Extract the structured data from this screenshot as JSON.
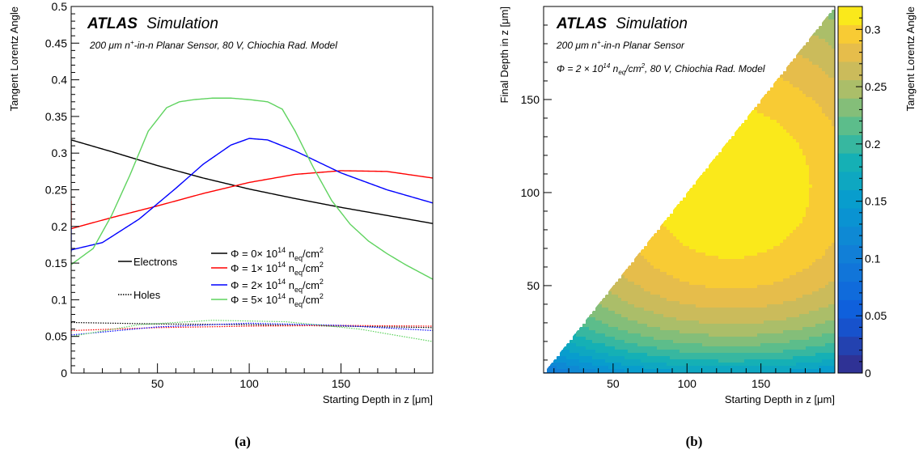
{
  "panel_a": {
    "caption": "(a)",
    "atlas": "ATLAS",
    "simulation": "Simulation",
    "subtitle_pre": "200 ",
    "subtitle_mu": "μ",
    "subtitle_mid": "m n",
    "subtitle_sup": "+",
    "subtitle_post": "-in-n Planar Sensor, 80 V, Chiochia Rad. Model",
    "legend_electrons": "Electrons",
    "legend_holes": "Holes"
  },
  "panel_b": {
    "caption": "(b)",
    "atlas": "ATLAS",
    "simulation": "Simulation",
    "line1_pre": "200 ",
    "line1_mu": "μ",
    "line1_mid": "m n",
    "line1_sup": "+",
    "line1_post": "-in-n Planar Sensor",
    "line2_phi": "Φ",
    "line2_a": " = 2 × 10",
    "line2_exp": "14",
    "line2_b": " n",
    "line2_sub": "eq",
    "line2_c": "/cm",
    "line2_sup2": "2",
    "line2_d": ", 80 V, Chiochia Rad. Model"
  },
  "chart_data": [
    {
      "type": "line",
      "xlabel": "Starting Depth in z [μm]",
      "ylabel": "Tangent Lorentz Angle",
      "xlim": [
        3,
        200
      ],
      "ylim": [
        0,
        0.5
      ],
      "x_ticks": [
        50,
        100,
        150
      ],
      "y_ticks": [
        0,
        0.05,
        0.1,
        0.15,
        0.2,
        0.25,
        0.3,
        0.35,
        0.4,
        0.45,
        0.5
      ],
      "y_tick_labels": [
        "0",
        "0.05",
        "0.1",
        "0.15",
        "0.2",
        "0.25",
        "0.3",
        "0.35",
        "0.4",
        "0.45",
        "0.5"
      ],
      "legend": [
        {
          "phi": "Φ",
          "mid": " = 0× 10",
          "exp": "14",
          "n": " n",
          "sub": "eq",
          "tail": "/cm",
          "sup2": "2",
          "color": "#000000"
        },
        {
          "phi": "Φ",
          "mid": " = 1× 10",
          "exp": "14",
          "n": " n",
          "sub": "eq",
          "tail": "/cm",
          "sup2": "2",
          "color": "#ff0000"
        },
        {
          "phi": "Φ",
          "mid": " = 2× 10",
          "exp": "14",
          "n": " n",
          "sub": "eq",
          "tail": "/cm",
          "sup2": "2",
          "color": "#0000ff"
        },
        {
          "phi": "Φ",
          "mid": " = 5× 10",
          "exp": "14",
          "n": " n",
          "sub": "eq",
          "tail": "/cm",
          "sup2": "2",
          "color": "#5fd35f"
        }
      ],
      "series": [
        {
          "carrier": "electrons",
          "color": "#000000",
          "x": [
            3,
            25,
            50,
            75,
            100,
            125,
            150,
            175,
            200
          ],
          "y": [
            0.318,
            0.302,
            0.283,
            0.266,
            0.251,
            0.238,
            0.226,
            0.215,
            0.204
          ],
          "start_segment": [
            [
              3,
              0.27
            ],
            [
              3,
              0.318
            ]
          ]
        },
        {
          "carrier": "electrons",
          "color": "#ff0000",
          "x": [
            3,
            25,
            50,
            75,
            100,
            125,
            150,
            175,
            200
          ],
          "y": [
            0.197,
            0.212,
            0.228,
            0.245,
            0.26,
            0.271,
            0.276,
            0.275,
            0.266
          ],
          "start_segment": [
            [
              3,
              0.2
            ],
            [
              3,
              0.235
            ]
          ]
        },
        {
          "carrier": "electrons",
          "color": "#0000ff",
          "x": [
            3,
            20,
            40,
            60,
            75,
            90,
            100,
            110,
            125,
            150,
            175,
            200
          ],
          "y": [
            0.168,
            0.178,
            0.21,
            0.252,
            0.285,
            0.311,
            0.32,
            0.318,
            0.303,
            0.273,
            0.25,
            0.232
          ],
          "start_segment": [
            [
              3,
              0.165
            ],
            [
              3,
              0.2
            ]
          ]
        },
        {
          "carrier": "electrons",
          "color": "#5fd35f",
          "x": [
            3,
            15,
            25,
            35,
            45,
            55,
            62,
            70,
            80,
            90,
            100,
            110,
            118,
            125,
            135,
            145,
            155,
            165,
            175,
            185,
            200
          ],
          "y": [
            0.148,
            0.17,
            0.215,
            0.27,
            0.33,
            0.362,
            0.37,
            0.373,
            0.375,
            0.375,
            0.373,
            0.37,
            0.36,
            0.33,
            0.28,
            0.235,
            0.203,
            0.18,
            0.163,
            0.148,
            0.128
          ]
        },
        {
          "carrier": "holes",
          "color": "#000000",
          "x": [
            3,
            50,
            100,
            150,
            200
          ],
          "y": [
            0.069,
            0.067,
            0.066,
            0.064,
            0.062
          ]
        },
        {
          "carrier": "holes",
          "color": "#ff0000",
          "x": [
            3,
            50,
            100,
            150,
            200
          ],
          "y": [
            0.058,
            0.062,
            0.064,
            0.065,
            0.064
          ]
        },
        {
          "carrier": "holes",
          "color": "#0000ff",
          "x": [
            3,
            50,
            100,
            150,
            200
          ],
          "y": [
            0.052,
            0.063,
            0.068,
            0.065,
            0.058
          ]
        },
        {
          "carrier": "holes",
          "color": "#5fd35f",
          "x": [
            3,
            40,
            80,
            120,
            160,
            200
          ],
          "y": [
            0.05,
            0.066,
            0.072,
            0.07,
            0.06,
            0.043
          ]
        }
      ]
    },
    {
      "type": "heatmap",
      "xlabel": "Starting Depth in z [μm]",
      "ylabel": "Final Depth in z [μm]",
      "zlabel": "Tangent Lorentz Angle",
      "xlim": [
        3,
        200
      ],
      "ylim": [
        3,
        200
      ],
      "zlim": [
        0,
        0.32
      ],
      "x_ticks": [
        50,
        100,
        150
      ],
      "y_ticks": [
        50,
        100,
        150
      ],
      "z_ticks": [
        0,
        0.05,
        0.1,
        0.15,
        0.2,
        0.25,
        0.3
      ],
      "z_tick_labels": [
        "0",
        "0.05",
        "0.1",
        "0.15",
        "0.2",
        "0.25",
        "0.3"
      ],
      "region": "final depth < starting depth",
      "peak": {
        "x": 130,
        "y": 100,
        "value": 0.318
      }
    }
  ]
}
